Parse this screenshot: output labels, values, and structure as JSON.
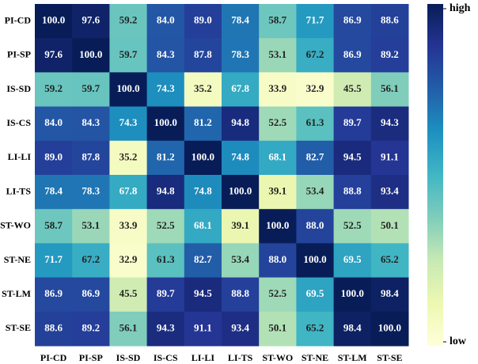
{
  "chart_data": {
    "type": "heatmap",
    "x_categories": [
      "PI-CD",
      "PI-SP",
      "IS-SD",
      "IS-CS",
      "LI-LI",
      "LI-TS",
      "ST-WO",
      "ST-NE",
      "ST-LM",
      "ST-SE"
    ],
    "y_categories": [
      "PI-CD",
      "PI-SP",
      "IS-SD",
      "IS-CS",
      "LI-LI",
      "LI-TS",
      "ST-WO",
      "ST-NE",
      "ST-LM",
      "ST-SE"
    ],
    "values": [
      [
        100.0,
        97.6,
        59.2,
        84.0,
        89.0,
        78.4,
        58.7,
        71.7,
        86.9,
        88.6
      ],
      [
        97.6,
        100.0,
        59.7,
        84.3,
        87.8,
        78.3,
        53.1,
        67.2,
        86.9,
        89.2
      ],
      [
        59.2,
        59.7,
        100.0,
        74.3,
        35.2,
        67.8,
        33.9,
        32.9,
        45.5,
        56.1
      ],
      [
        84.0,
        84.3,
        74.3,
        100.0,
        81.2,
        94.8,
        52.5,
        61.3,
        89.7,
        94.3
      ],
      [
        89.0,
        87.8,
        35.2,
        81.2,
        100.0,
        74.8,
        68.1,
        82.7,
        94.5,
        91.1
      ],
      [
        78.4,
        78.3,
        67.8,
        94.8,
        74.8,
        100.0,
        39.1,
        53.4,
        88.8,
        93.4
      ],
      [
        58.7,
        53.1,
        33.9,
        52.5,
        68.1,
        39.1,
        100.0,
        88.0,
        52.5,
        50.1
      ],
      [
        71.7,
        67.2,
        32.9,
        61.3,
        82.7,
        53.4,
        88.0,
        100.0,
        69.5,
        65.2
      ],
      [
        86.9,
        86.9,
        45.5,
        89.7,
        94.5,
        88.8,
        52.5,
        69.5,
        100.0,
        98.4
      ],
      [
        88.6,
        89.2,
        56.1,
        94.3,
        91.1,
        93.4,
        50.1,
        65.2,
        98.4,
        100.0
      ]
    ],
    "value_labels": [
      [
        "100.0",
        "97.6",
        "59.2",
        "84.0",
        "89.0",
        "78.4",
        "58.7",
        "71.7",
        "86.9",
        "88.6"
      ],
      [
        "97.6",
        "100.0",
        "59.7",
        "84.3",
        "87.8",
        "78.3",
        "53.1",
        "67.2",
        "86.9",
        "89.2"
      ],
      [
        "59.2",
        "59.7",
        "100.0",
        "74.3",
        "35.2",
        "67.8",
        "33.9",
        "32.9",
        "45.5",
        "56.1"
      ],
      [
        "84.0",
        "84.3",
        "74.3",
        "100.0",
        "81.2",
        "94.8",
        "52.5",
        "61.3",
        "89.7",
        "94.3"
      ],
      [
        "89.0",
        "87.8",
        "35.2",
        "81.2",
        "100.0",
        "74.8",
        "68.1",
        "82.7",
        "94.5",
        "91.1"
      ],
      [
        "78.4",
        "78.3",
        "67.8",
        "94.8",
        "74.8",
        "100.0",
        "39.1",
        "53.4",
        "88.8",
        "93.4"
      ],
      [
        "58.7",
        "53.1",
        "33.9",
        "52.5",
        "68.1",
        "39.1",
        "100.0",
        "88.0",
        "52.5",
        "50.1"
      ],
      [
        "71.7",
        "67.2",
        "32.9",
        "61.3",
        "82.7",
        "53.4",
        "88.0",
        "100.0",
        "69.5",
        "65.2"
      ],
      [
        "86.9",
        "86.9",
        "45.5",
        "89.7",
        "94.5",
        "88.8",
        "52.5",
        "69.5",
        "100.0",
        "98.4"
      ],
      [
        "88.6",
        "89.2",
        "56.1",
        "94.3",
        "91.1",
        "93.4",
        "50.1",
        "65.2",
        "98.4",
        "100.0"
      ]
    ],
    "colormap": [
      "#ffffd9",
      "#edf8b1",
      "#c7e9b4",
      "#7fcdbb",
      "#41b6c4",
      "#1d91c0",
      "#225ea8",
      "#253494",
      "#081d58"
    ],
    "vlim": [
      30,
      100
    ],
    "colorbar_labels": {
      "high": "high",
      "low": "low"
    }
  }
}
